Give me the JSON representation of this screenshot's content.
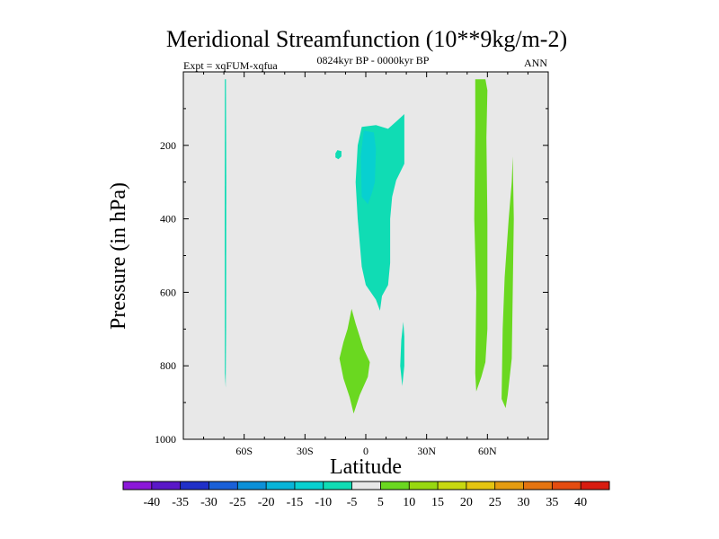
{
  "chart_data": {
    "type": "contour",
    "title": "Meridional Streamfunction (10**9kg/m-2)",
    "subtitle_left": "Expt = xqFUM-xqfua",
    "subtitle_center": "0824kyr BP - 0000kyr BP",
    "subtitle_right": "ANN",
    "xlabel": "Latitude",
    "ylabel": "Pressure (in hPa)",
    "xlim": [
      -90,
      90
    ],
    "ylim": [
      1000,
      0
    ],
    "x_ticks": [
      {
        "value": -60,
        "label": "60S"
      },
      {
        "value": -30,
        "label": "30S"
      },
      {
        "value": 0,
        "label": "0"
      },
      {
        "value": 30,
        "label": "30N"
      },
      {
        "value": 60,
        "label": "60N"
      }
    ],
    "y_ticks": [
      {
        "value": 200,
        "label": "200"
      },
      {
        "value": 400,
        "label": "400"
      },
      {
        "value": 600,
        "label": "600"
      },
      {
        "value": 800,
        "label": "800"
      },
      {
        "value": 1000,
        "label": "1000"
      }
    ],
    "background_color": "#e8e8e8",
    "colorbar": {
      "labels": [
        "-40",
        "-35",
        "-30",
        "-25",
        "-20",
        "-15",
        "-10",
        "-5",
        "5",
        "10",
        "15",
        "20",
        "25",
        "30",
        "35",
        "40"
      ],
      "colors": [
        "#8b18d8",
        "#5a18c8",
        "#2030c8",
        "#1a60d8",
        "#0c90d8",
        "#08b4d8",
        "#08d0d0",
        "#10dcb4",
        "#e8e8e8",
        "#6ad820",
        "#98d810",
        "#c8d810",
        "#e4c410",
        "#e49c10",
        "#e47410",
        "#e44c10",
        "#d81c10"
      ]
    },
    "regions": [
      {
        "name": "thin-band-60s",
        "level": "-5 to -10",
        "color": "#10dcb4",
        "points": [
          [
            -69.5,
            20
          ],
          [
            -69.0,
            20
          ],
          [
            -68.8,
            300
          ],
          [
            -68.9,
            700
          ],
          [
            -69.1,
            860
          ],
          [
            -69.5,
            820
          ],
          [
            -69.6,
            400
          ]
        ]
      },
      {
        "name": "equatorial-cell-outer",
        "level": "-5 to -10",
        "color": "#10dcb4",
        "points": [
          [
            -4,
            200
          ],
          [
            -2,
            150
          ],
          [
            5,
            145
          ],
          [
            11,
            155
          ],
          [
            16,
            130
          ],
          [
            19,
            115
          ],
          [
            19,
            250
          ],
          [
            15,
            295
          ],
          [
            13,
            340
          ],
          [
            12,
            400
          ],
          [
            12,
            520
          ],
          [
            11,
            580
          ],
          [
            8,
            610
          ],
          [
            7,
            650
          ],
          [
            5,
            620
          ],
          [
            0,
            580
          ],
          [
            -2,
            530
          ],
          [
            -4,
            400
          ],
          [
            -5,
            300
          ]
        ]
      },
      {
        "name": "equatorial-cell-inner",
        "level": "-10 to -15",
        "color": "#08d0d0",
        "points": [
          [
            -2.5,
            230
          ],
          [
            -1,
            160
          ],
          [
            4,
            165
          ],
          [
            5,
            210
          ],
          [
            4.5,
            300
          ],
          [
            3,
            330
          ],
          [
            1,
            360
          ],
          [
            -2,
            340
          ]
        ]
      },
      {
        "name": "small-blob-15s",
        "level": "-5 to -10",
        "color": "#10dcb4",
        "points": [
          [
            -15,
            222
          ],
          [
            -14,
            213
          ],
          [
            -12,
            216
          ],
          [
            -12,
            230
          ],
          [
            -13.5,
            238
          ],
          [
            -15,
            233
          ]
        ]
      },
      {
        "name": "lower-cell-5s",
        "level": "5 to 10",
        "color": "#6ad820",
        "points": [
          [
            -7,
            645
          ],
          [
            -5,
            685
          ],
          [
            -1,
            755
          ],
          [
            2,
            790
          ],
          [
            1,
            830
          ],
          [
            -3,
            880
          ],
          [
            -6,
            930
          ],
          [
            -8,
            885
          ],
          [
            -11,
            835
          ],
          [
            -13,
            780
          ],
          [
            -11,
            735
          ],
          [
            -9,
            700
          ]
        ]
      },
      {
        "name": "lower-band-18n",
        "level": "-5 to -10",
        "color": "#10dcb4",
        "points": [
          [
            17.5,
            730
          ],
          [
            18.5,
            680
          ],
          [
            19,
            720
          ],
          [
            19,
            800
          ],
          [
            18,
            855
          ],
          [
            17,
            800
          ]
        ]
      },
      {
        "name": "vertical-band-57n",
        "level": "5 to 10",
        "color": "#6ad820",
        "points": [
          [
            54,
            20
          ],
          [
            59,
            20
          ],
          [
            60,
            50
          ],
          [
            59.5,
            180
          ],
          [
            60,
            400
          ],
          [
            60,
            700
          ],
          [
            59,
            790
          ],
          [
            57,
            830
          ],
          [
            54.5,
            870
          ],
          [
            54,
            820
          ],
          [
            54.5,
            600
          ],
          [
            53.5,
            400
          ],
          [
            54,
            150
          ]
        ]
      },
      {
        "name": "vertical-band-72n",
        "level": "5 to 10",
        "color": "#6ad820",
        "points": [
          [
            72.5,
            230
          ],
          [
            73,
            400
          ],
          [
            72.5,
            600
          ],
          [
            72,
            780
          ],
          [
            70,
            880
          ],
          [
            69,
            915
          ],
          [
            67,
            890
          ],
          [
            67.5,
            700
          ],
          [
            68.5,
            560
          ],
          [
            70.5,
            400
          ],
          [
            72,
            300
          ]
        ]
      }
    ]
  }
}
